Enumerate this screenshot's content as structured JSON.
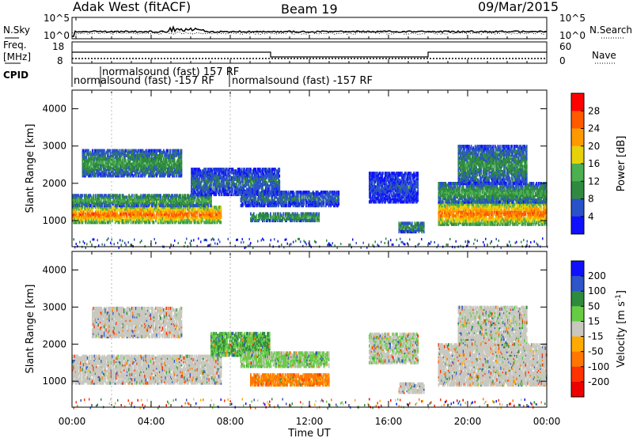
{
  "header": {
    "radar": "Adak West (fitACF)",
    "beam": "Beam 19",
    "date": "09/Mar/2015"
  },
  "summary_panels": {
    "noise": {
      "left_label": "N.Sky",
      "left_ticks": [
        "10^5",
        "10^0"
      ],
      "right_ticks": [
        "10^5",
        "10^0"
      ],
      "right_label": "N.Search"
    },
    "freq": {
      "left_label_1": "Freq.",
      "left_label_2": "[MHz]",
      "left_ticks": [
        "18",
        "8"
      ],
      "right_ticks": [
        "60",
        "0"
      ],
      "right_label": "Nave"
    },
    "cpid": {
      "label": "CPID",
      "entries": [
        "normalsound (fast) 157 RF",
        "normalsound (fast) -157 RF",
        "normalsound (fast) -157 RF"
      ]
    }
  },
  "colors": {
    "power_scale": [
      "#1010ff",
      "#2a52c8",
      "#2f8a3f",
      "#4caf50",
      "#e6d20a",
      "#ff9900",
      "#ff5a00",
      "#ff0000"
    ],
    "velocity_scale": [
      "#1010ff",
      "#2e55c9",
      "#2e8b3e",
      "#66cc44",
      "#c8c8c0",
      "#ffaa00",
      "#ff7700",
      "#ff3300",
      "#ee0000"
    ],
    "ground_scatter": "#c8c8c0"
  },
  "chart_data": [
    {
      "type": "heatmap",
      "quantity": "power",
      "ylabel": "Slant Range [km]",
      "ylim": [
        300,
        4500
      ],
      "yticks": [
        "1000",
        "2000",
        "3000",
        "4000"
      ],
      "xlim": [
        0,
        24
      ],
      "colorbar": {
        "label": "Power [dB]",
        "ticks": [
          "4",
          "8",
          "12",
          "16",
          "20",
          "24",
          "28"
        ]
      },
      "regions": [
        {
          "t": [
            0.0,
            7.5
          ],
          "r": [
            950,
            1400
          ],
          "level": 26
        },
        {
          "t": [
            0.0,
            7.0
          ],
          "r": [
            1400,
            1700
          ],
          "level": 14
        },
        {
          "t": [
            0.5,
            5.5
          ],
          "r": [
            2200,
            2900
          ],
          "level": 12
        },
        {
          "t": [
            6.0,
            10.5
          ],
          "r": [
            1700,
            2400
          ],
          "level": 8
        },
        {
          "t": [
            8.5,
            13.5
          ],
          "r": [
            1400,
            1800
          ],
          "level": 8
        },
        {
          "t": [
            9.0,
            12.5
          ],
          "r": [
            1000,
            1200
          ],
          "level": 13
        },
        {
          "t": [
            15.0,
            17.5
          ],
          "r": [
            1500,
            2300
          ],
          "level": 6
        },
        {
          "t": [
            16.5,
            17.8
          ],
          "r": [
            700,
            950
          ],
          "level": 12
        },
        {
          "t": [
            18.5,
            24.0
          ],
          "r": [
            900,
            1500
          ],
          "level": 26
        },
        {
          "t": [
            18.5,
            24.0
          ],
          "r": [
            1500,
            2000
          ],
          "level": 13
        },
        {
          "t": [
            19.5,
            23.0
          ],
          "r": [
            2000,
            3000
          ],
          "level": 11
        }
      ]
    },
    {
      "type": "heatmap",
      "quantity": "velocity",
      "ylabel": "Slant Range [km]",
      "xlabel": "Time UT",
      "ylim": [
        300,
        4500
      ],
      "yticks": [
        "1000",
        "2000",
        "3000",
        "4000"
      ],
      "xlim": [
        0,
        24
      ],
      "xticks": [
        "00:00",
        "04:00",
        "08:00",
        "12:00",
        "16:00",
        "20:00",
        "00:00"
      ],
      "colorbar": {
        "label": "Velocity [m s",
        "label_sup": "-1",
        "label_end": "]",
        "ticks": [
          "200",
          "100",
          "50",
          "15",
          "-15",
          "-50",
          "-100",
          "-200"
        ]
      },
      "regions": [
        {
          "t": [
            0.0,
            7.5
          ],
          "r": [
            950,
            1700
          ],
          "v": 0
        },
        {
          "t": [
            1.0,
            5.5
          ],
          "r": [
            2200,
            3000
          ],
          "v": 0
        },
        {
          "t": [
            7.0,
            10.0
          ],
          "r": [
            1700,
            2300
          ],
          "v": 30
        },
        {
          "t": [
            8.5,
            13.0
          ],
          "r": [
            1400,
            1800
          ],
          "v": 20
        },
        {
          "t": [
            9.0,
            13.0
          ],
          "r": [
            900,
            1200
          ],
          "v": -40
        },
        {
          "t": [
            15.0,
            17.5
          ],
          "r": [
            1500,
            2300
          ],
          "v": 10
        },
        {
          "t": [
            16.5,
            17.8
          ],
          "r": [
            700,
            950
          ],
          "v": 0
        },
        {
          "t": [
            18.5,
            24.0
          ],
          "r": [
            900,
            2000
          ],
          "v": 0
        },
        {
          "t": [
            19.5,
            23.0
          ],
          "r": [
            2000,
            3000
          ],
          "v": 5
        }
      ]
    }
  ]
}
